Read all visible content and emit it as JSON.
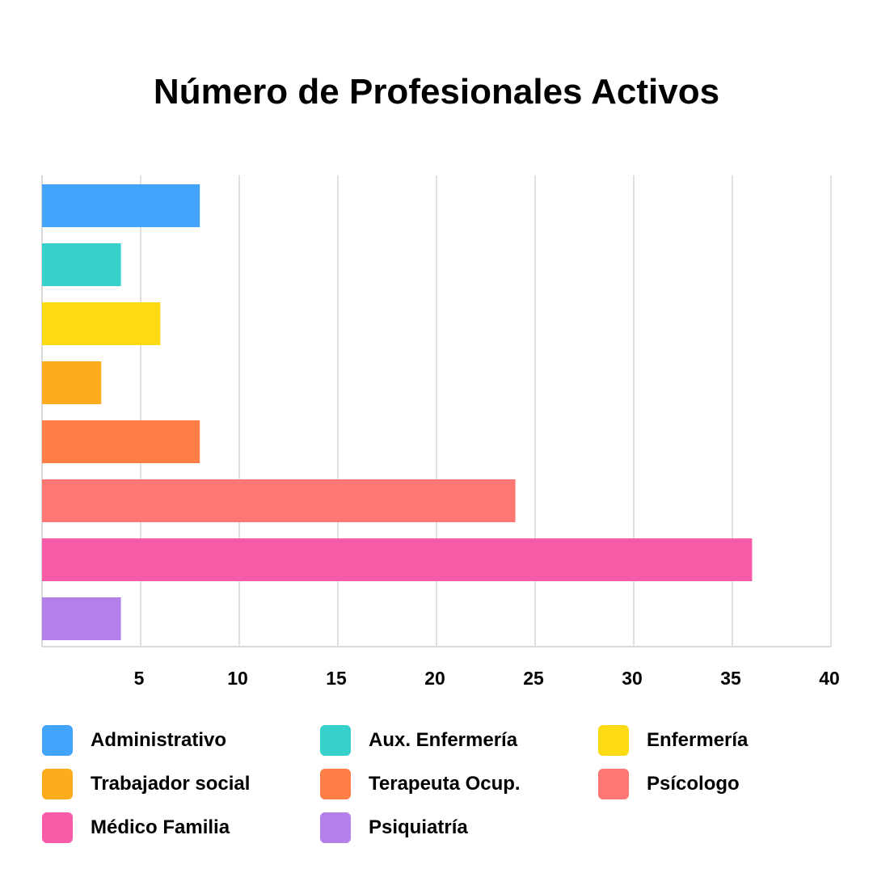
{
  "chart_data": {
    "type": "bar",
    "orientation": "horizontal",
    "title": "Número de Profesionales Activos",
    "xlabel": "",
    "ylabel": "",
    "xlim": [
      0,
      40
    ],
    "x_ticks": [
      5,
      10,
      15,
      20,
      25,
      30,
      35,
      40
    ],
    "grid": true,
    "legend_position": "bottom",
    "categories": [
      "Administrativo",
      "Aux. Enfermería",
      "Enfermería",
      "Trabajador social",
      "Terapeuta Ocup.",
      "Psícologo",
      "Médico Familia",
      "Psiquiatría"
    ],
    "values": [
      8,
      4,
      6,
      3,
      8,
      24,
      36,
      4
    ],
    "colors": [
      "#42A5FB",
      "#37D0CB",
      "#FCDB14",
      "#FCAC1C",
      "#FF7E48",
      "#FF7774",
      "#F85BA8",
      "#B37FE9"
    ]
  }
}
